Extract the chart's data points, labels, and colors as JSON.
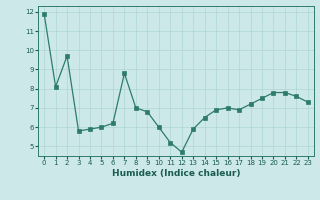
{
  "x": [
    0,
    1,
    2,
    3,
    4,
    5,
    6,
    7,
    8,
    9,
    10,
    11,
    12,
    13,
    14,
    15,
    16,
    17,
    18,
    19,
    20,
    21,
    22,
    23
  ],
  "y": [
    11.9,
    8.1,
    9.7,
    5.8,
    5.9,
    6.0,
    6.2,
    8.8,
    7.0,
    6.8,
    6.0,
    5.2,
    4.7,
    5.9,
    6.5,
    6.9,
    7.0,
    6.9,
    7.2,
    7.5,
    7.8,
    7.8,
    7.6,
    7.3
  ],
  "xlabel": "Humidex (Indice chaleur)",
  "ylabel": "",
  "xlim": [
    -0.5,
    23.5
  ],
  "ylim": [
    4.5,
    12.3
  ],
  "yticks": [
    5,
    6,
    7,
    8,
    9,
    10,
    11,
    12
  ],
  "xtick_labels": [
    "0",
    "1",
    "2",
    "3",
    "4",
    "5",
    "6",
    "7",
    "8",
    "9",
    "10",
    "11",
    "12",
    "13",
    "14",
    "15",
    "16",
    "17",
    "18",
    "19",
    "20",
    "21",
    "22",
    "23"
  ],
  "line_color": "#2e7b6e",
  "marker_color": "#2e7b6e",
  "bg_color": "#cce8e8",
  "grid_color": "#aed4d4",
  "label_color": "#1a5c52",
  "tick_color": "#1a5c52",
  "spine_color": "#2e7b6e",
  "tick_fontsize": 5.0,
  "xlabel_fontsize": 6.5,
  "ylabel_fontsize": 6.0,
  "linewidth": 0.9,
  "markersize": 2.2
}
